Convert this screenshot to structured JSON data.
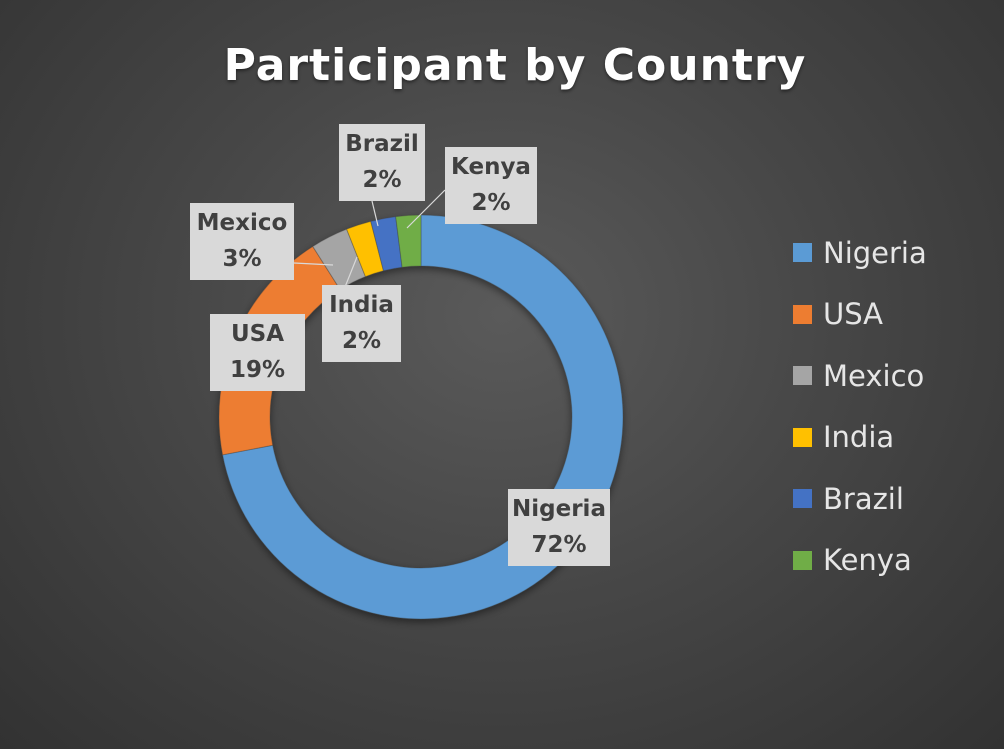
{
  "chart_data": {
    "type": "pie",
    "title": "Participant by Country",
    "categories": [
      "Nigeria",
      "USA",
      "Mexico",
      "India",
      "Brazil",
      "Kenya"
    ],
    "values": [
      72,
      19,
      3,
      2,
      2,
      2
    ],
    "percent_labels": [
      "72%",
      "19%",
      "3%",
      "2%",
      "2%",
      "2%"
    ],
    "colors": [
      "#5b9bd5",
      "#ed7d31",
      "#a5a5a5",
      "#ffc000",
      "#4472c4",
      "#70ad47"
    ],
    "donut": true,
    "legend_position": "right"
  }
}
